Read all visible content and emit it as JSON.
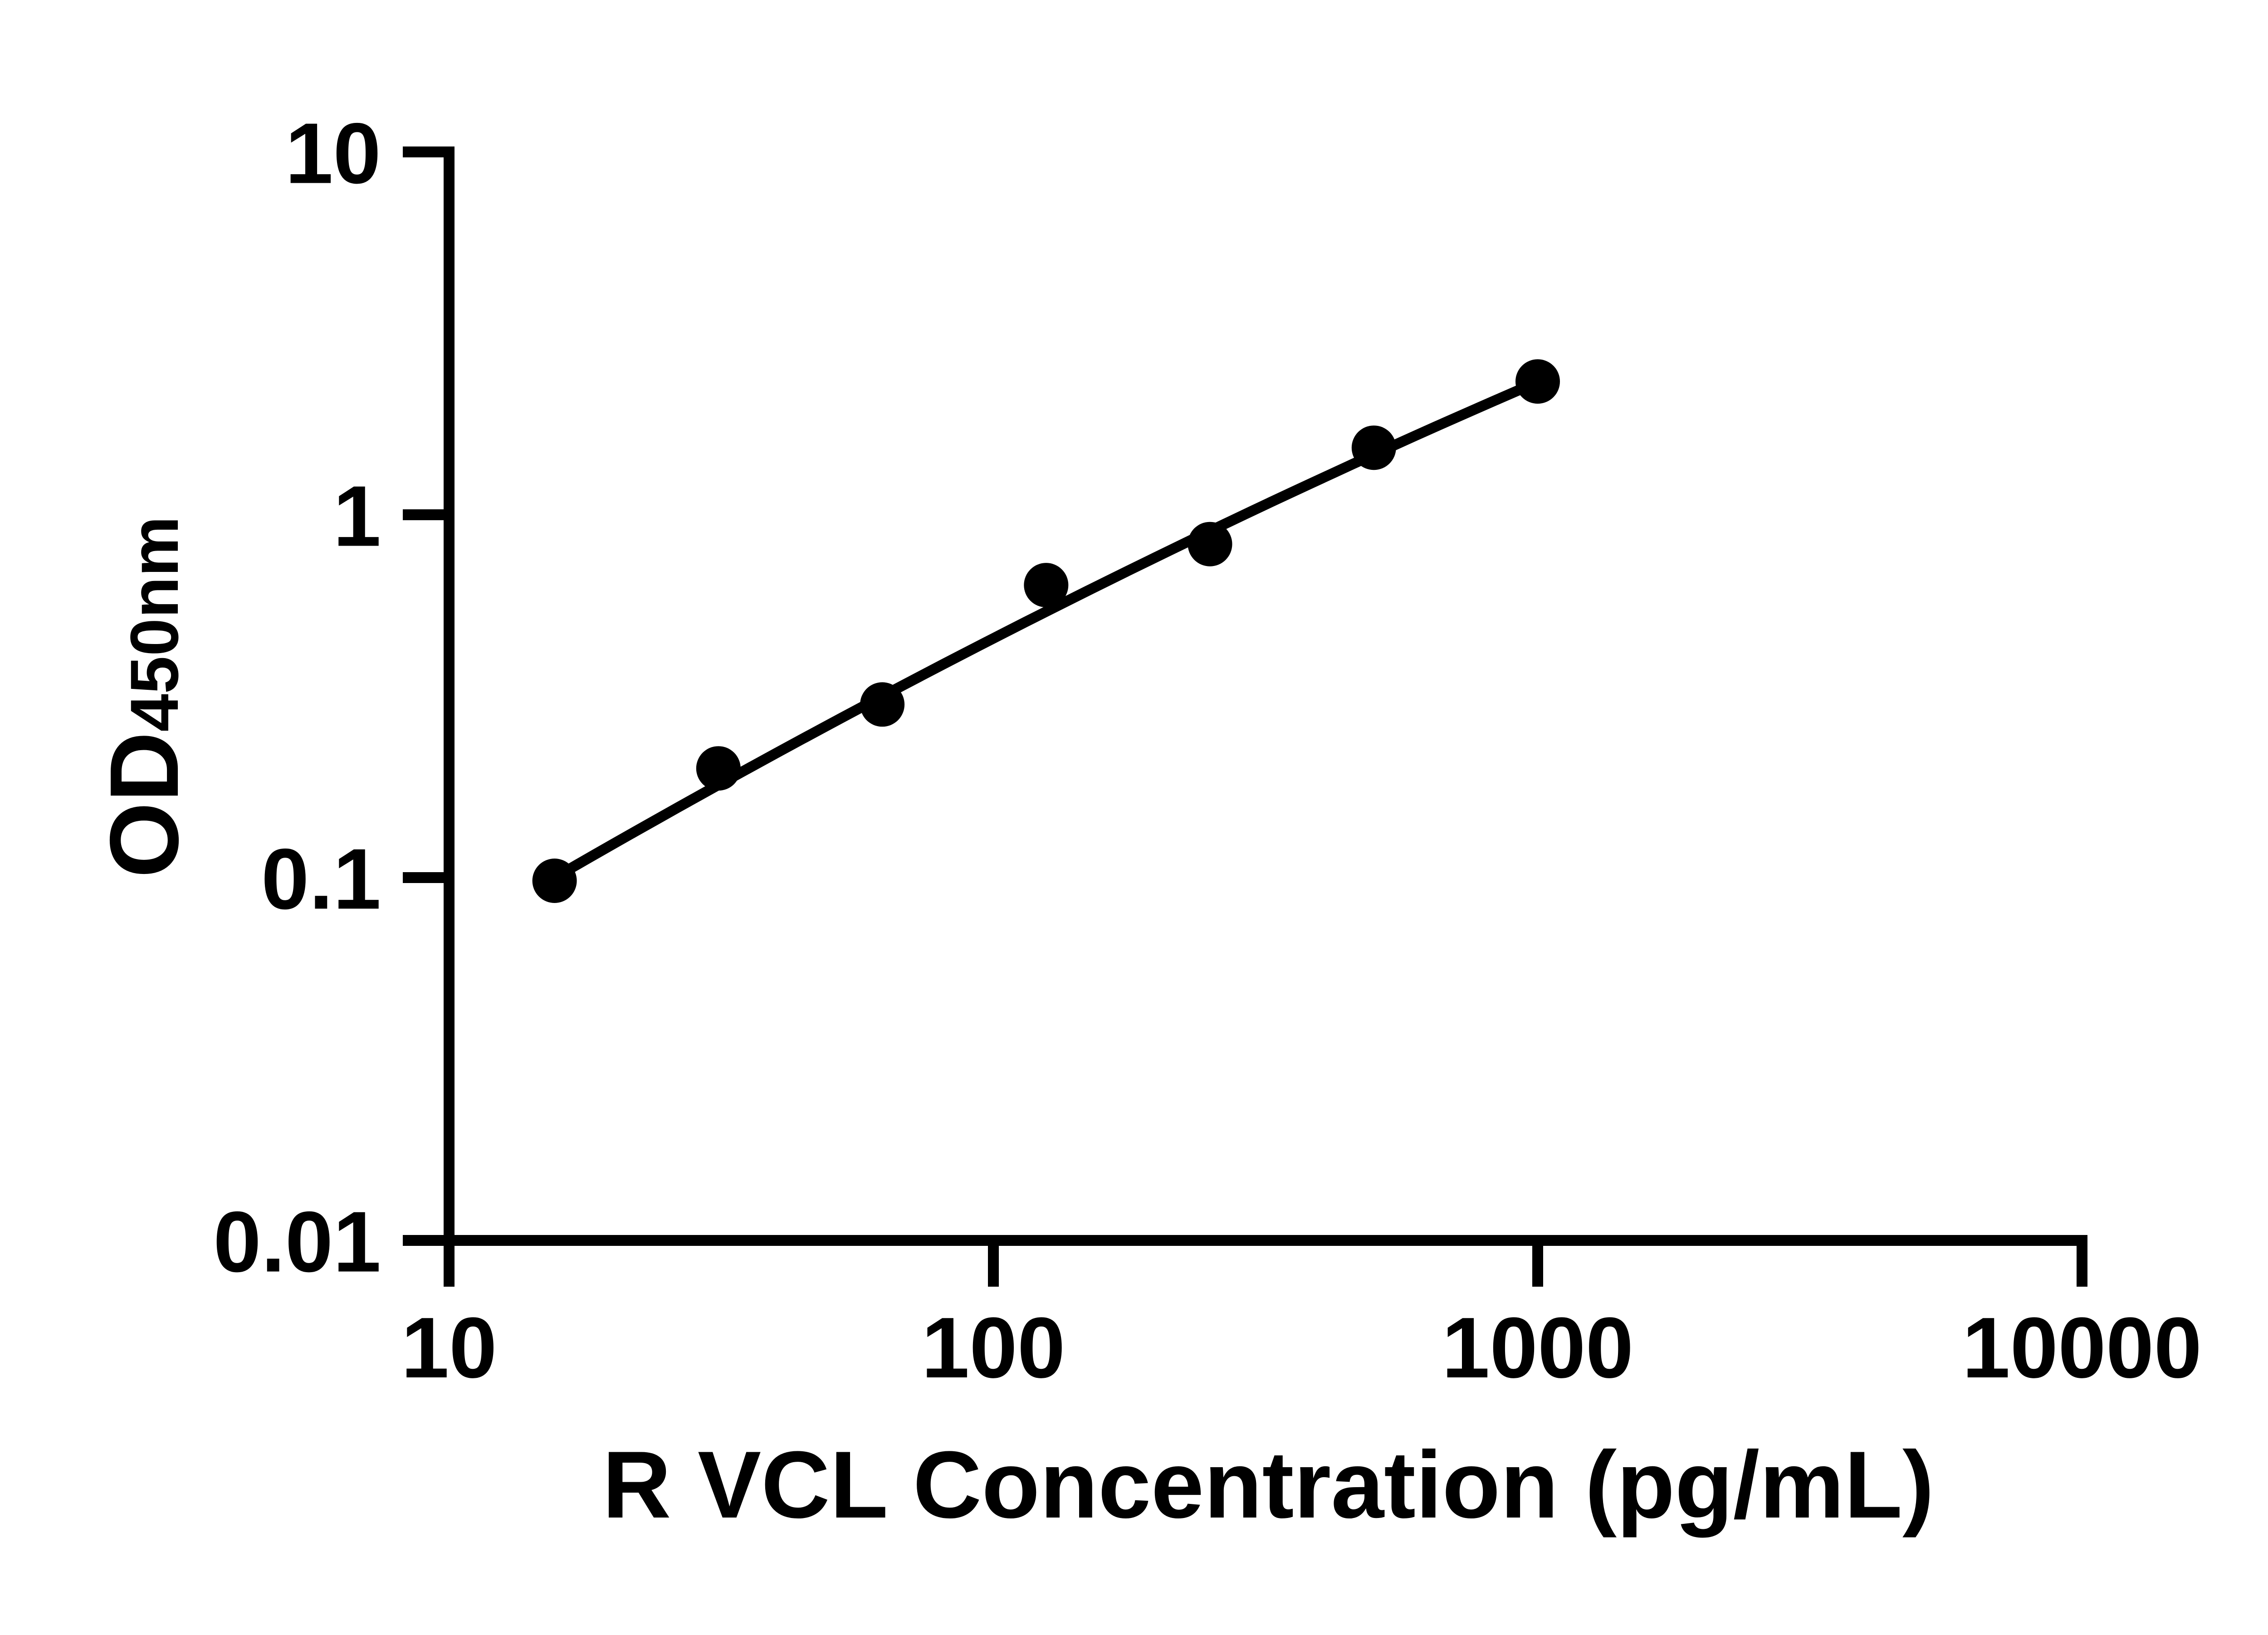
{
  "chart_data": {
    "type": "scatter",
    "title": "",
    "xlabel": "R VCL Concentration (pg/mL)",
    "ylabel_main": "OD",
    "ylabel_sub": "450nm",
    "x_scale": "log",
    "y_scale": "log",
    "xlim": [
      10,
      10000
    ],
    "ylim": [
      0.01,
      10
    ],
    "x_ticks": [
      10,
      100,
      1000,
      10000
    ],
    "x_tick_labels": [
      "10",
      "100",
      "1000",
      "10000"
    ],
    "y_ticks": [
      0.01,
      0.1,
      1,
      10
    ],
    "y_tick_labels": [
      "0.01",
      "0.1",
      "1",
      "10"
    ],
    "grid": false,
    "legend": "none",
    "series": [
      {
        "name": "standard-curve-points",
        "x": [
          15.625,
          31.25,
          62.5,
          125,
          250,
          500,
          1000
        ],
        "y": [
          0.098,
          0.2,
          0.3,
          0.64,
          0.83,
          1.53,
          2.33
        ]
      }
    ],
    "trendline": {
      "type": "quadratic_loglog",
      "a": -0.0616,
      "b": 1.0147,
      "c": -2.1237,
      "domain": [
        15.625,
        1000
      ]
    },
    "marker_color": "#000000",
    "line_color": "#000000",
    "axis_color": "#000000",
    "background": "#ffffff"
  }
}
